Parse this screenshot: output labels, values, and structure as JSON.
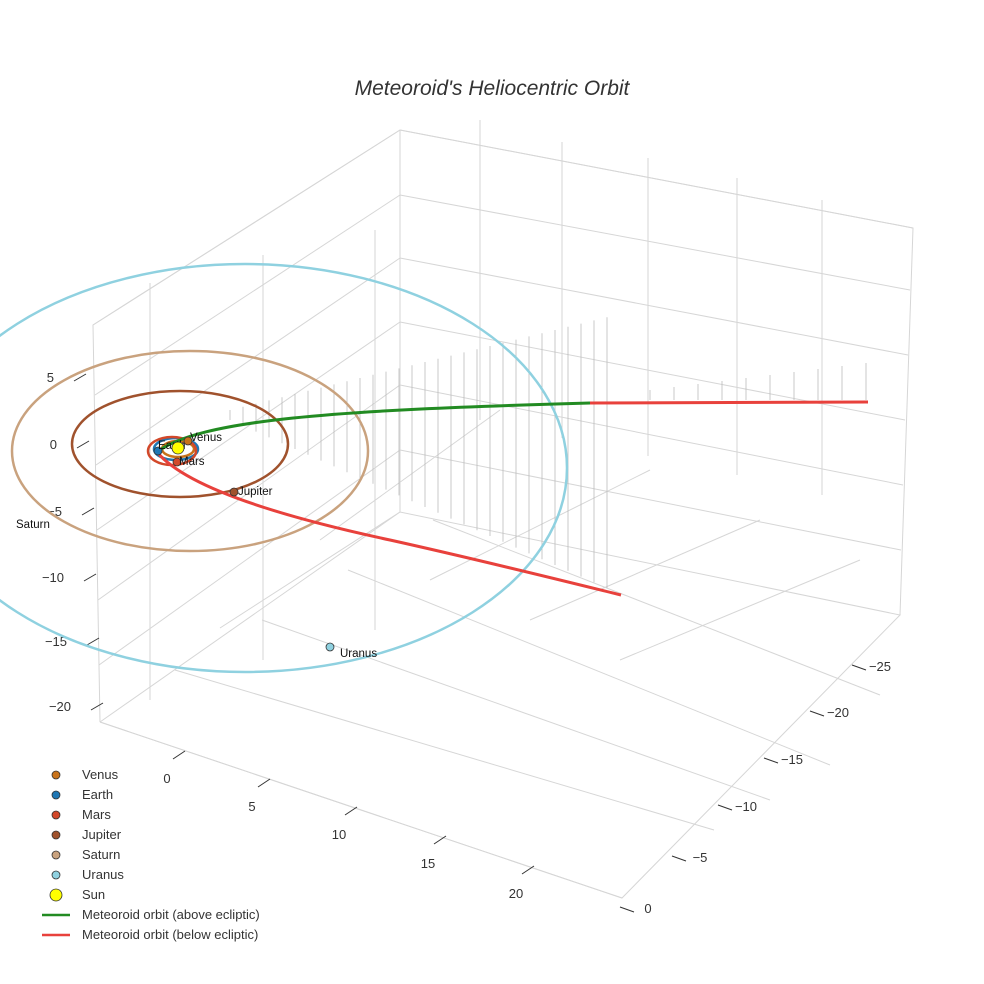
{
  "chart_data": {
    "type": "scatter3d",
    "title": "Meteoroid's Heliocentric Orbit",
    "xlabel": "",
    "ylabel": "",
    "zlabel": "",
    "x_ticks": [
      "−25",
      "−20",
      "−15",
      "−10",
      "−5",
      "0"
    ],
    "y_ticks": [
      "0",
      "5",
      "10",
      "15",
      "20"
    ],
    "z_ticks": [
      "5",
      "0",
      "−5",
      "−10",
      "−15",
      "−20"
    ],
    "colors": {
      "Venus": "#c8721a",
      "Earth": "#1f77b4",
      "Mars": "#d2482a",
      "Jupiter": "#a0522d",
      "Saturn": "#c9a27e",
      "Uranus": "#8fd1e0",
      "Sun": "#ffff00",
      "above": "#228b22",
      "below": "#e8413c",
      "stem": "#bbbbbb",
      "grid": "#d6d6d6"
    },
    "planets": [
      {
        "name": "Venus",
        "orbit_radius_au": 0.72,
        "position": [
          0.5,
          -0.5,
          0
        ]
      },
      {
        "name": "Earth",
        "orbit_radius_au": 1.0,
        "position": [
          -0.9,
          0.4,
          0
        ]
      },
      {
        "name": "Mars",
        "orbit_radius_au": 1.52,
        "position": [
          0.9,
          1.2,
          0
        ]
      },
      {
        "name": "Jupiter",
        "orbit_radius_au": 5.2,
        "position": [
          3.0,
          4.3,
          0
        ]
      },
      {
        "name": "Saturn",
        "orbit_radius_au": 9.54,
        "position": [
          -9.5,
          0.8,
          0
        ]
      },
      {
        "name": "Uranus",
        "orbit_radius_au": 19.2,
        "position": [
          9.0,
          17.0,
          0
        ]
      }
    ],
    "sun": {
      "name": "Sun",
      "position": [
        0,
        0,
        0
      ]
    },
    "meteoroid_orbit": {
      "above_ecliptic": {
        "name": "Meteoroid orbit (above ecliptic)",
        "z_range": [
          0,
          5.5
        ]
      },
      "below_ecliptic": {
        "name": "Meteoroid orbit (below ecliptic)",
        "z_range": [
          -9,
          0
        ]
      }
    },
    "legend": [
      {
        "label": "Venus",
        "kind": "dot",
        "color": "#c8721a"
      },
      {
        "label": "Earth",
        "kind": "dot",
        "color": "#1f77b4"
      },
      {
        "label": "Mars",
        "kind": "dot",
        "color": "#d2482a"
      },
      {
        "label": "Jupiter",
        "kind": "dot",
        "color": "#a0522d"
      },
      {
        "label": "Saturn",
        "kind": "dot",
        "color": "#c9a27e"
      },
      {
        "label": "Uranus",
        "kind": "dot",
        "color": "#8fd1e0"
      },
      {
        "label": "Sun",
        "kind": "bigdot",
        "color": "#ffff00"
      },
      {
        "label": "Meteoroid orbit (above ecliptic)",
        "kind": "line",
        "color": "#228b22"
      },
      {
        "label": "Meteoroid orbit (below ecliptic)",
        "kind": "line",
        "color": "#e8413c"
      }
    ]
  }
}
